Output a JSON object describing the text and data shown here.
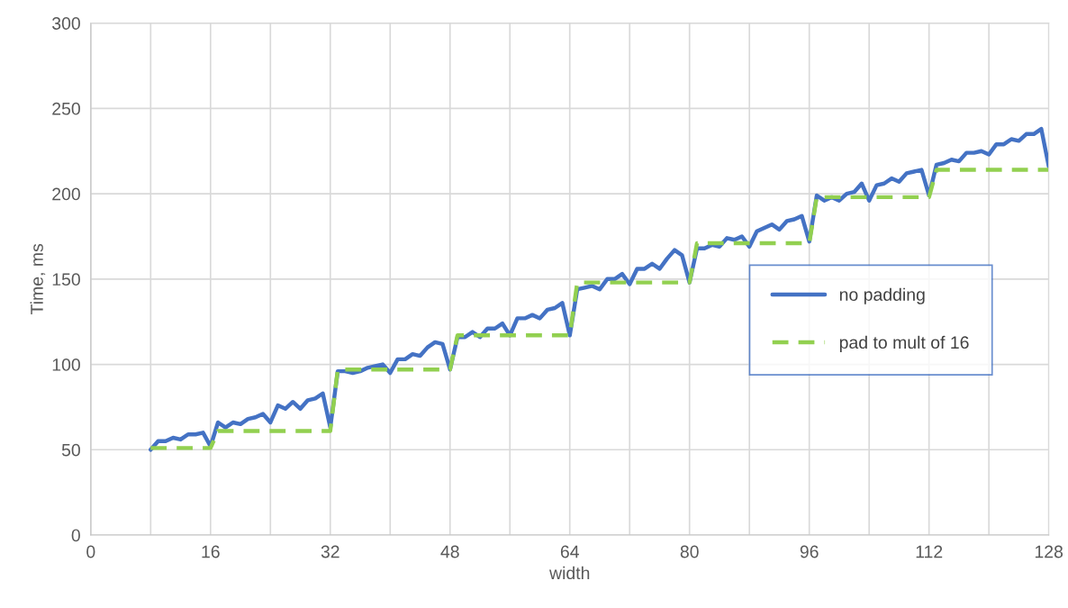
{
  "chart_data": {
    "type": "line",
    "xlabel": "width",
    "ylabel": "Time, ms",
    "x": [
      8,
      9,
      10,
      11,
      12,
      13,
      14,
      15,
      16,
      17,
      18,
      19,
      20,
      21,
      22,
      23,
      24,
      25,
      26,
      27,
      28,
      29,
      30,
      31,
      32,
      33,
      34,
      35,
      36,
      37,
      38,
      39,
      40,
      41,
      42,
      43,
      44,
      45,
      46,
      47,
      48,
      49,
      50,
      51,
      52,
      53,
      54,
      55,
      56,
      57,
      58,
      59,
      60,
      61,
      62,
      63,
      64,
      65,
      66,
      67,
      68,
      69,
      70,
      71,
      72,
      73,
      74,
      75,
      76,
      77,
      78,
      79,
      80,
      81,
      82,
      83,
      84,
      85,
      86,
      87,
      88,
      89,
      90,
      91,
      92,
      93,
      94,
      95,
      96,
      97,
      98,
      99,
      100,
      101,
      102,
      103,
      104,
      105,
      106,
      107,
      108,
      109,
      110,
      111,
      112,
      113,
      114,
      115,
      116,
      117,
      118,
      119,
      120,
      121,
      122,
      123,
      124,
      125,
      126,
      127,
      128
    ],
    "series": [
      {
        "name": "no padding",
        "color": "#4472c4",
        "line_style": "solid",
        "values": [
          50,
          55,
          55,
          57,
          56,
          59,
          59,
          60,
          52,
          66,
          63,
          66,
          65,
          68,
          69,
          71,
          66,
          76,
          74,
          78,
          74,
          79,
          80,
          83,
          63,
          96,
          96,
          95,
          96,
          98,
          99,
          100,
          95,
          103,
          103,
          106,
          105,
          110,
          113,
          112,
          97,
          116,
          116,
          119,
          116,
          121,
          121,
          124,
          117,
          127,
          127,
          129,
          127,
          132,
          133,
          136,
          117,
          144,
          145,
          146,
          144,
          150,
          150,
          153,
          147,
          156,
          156,
          159,
          156,
          162,
          167,
          164,
          148,
          168,
          168,
          170,
          169,
          174,
          173,
          175,
          169,
          178,
          180,
          182,
          179,
          184,
          185,
          187,
          172,
          199,
          196,
          198,
          196,
          200,
          201,
          206,
          196,
          205,
          206,
          209,
          207,
          212,
          213,
          214,
          199,
          217,
          218,
          220,
          219,
          224,
          224,
          225,
          223,
          229,
          229,
          232,
          231,
          235,
          235,
          238,
          216
        ]
      },
      {
        "name": "pad to mult of 16",
        "color": "#92d050",
        "line_style": "dashed",
        "values": [
          51,
          51,
          51,
          51,
          51,
          51,
          51,
          51,
          51,
          61,
          61,
          61,
          61,
          61,
          61,
          61,
          61,
          61,
          61,
          61,
          61,
          61,
          61,
          61,
          61,
          97,
          97,
          97,
          97,
          97,
          97,
          97,
          97,
          97,
          97,
          97,
          97,
          97,
          97,
          97,
          97,
          117,
          117,
          117,
          117,
          117,
          117,
          117,
          117,
          117,
          117,
          117,
          117,
          117,
          117,
          117,
          117,
          148,
          148,
          148,
          148,
          148,
          148,
          148,
          148,
          148,
          148,
          148,
          148,
          148,
          148,
          148,
          148,
          171,
          171,
          171,
          171,
          171,
          171,
          171,
          171,
          171,
          171,
          171,
          171,
          171,
          171,
          171,
          171,
          198,
          198,
          198,
          198,
          198,
          198,
          198,
          198,
          198,
          198,
          198,
          198,
          198,
          198,
          198,
          198,
          214,
          214,
          214,
          214,
          214,
          214,
          214,
          214,
          214,
          214,
          214,
          214,
          214,
          214,
          214,
          214
        ]
      }
    ],
    "xlim": [
      0,
      128
    ],
    "ylim": [
      0,
      300
    ],
    "xticks": [
      0,
      {
        "value": 8,
        "label": null
      },
      16,
      {
        "value": 24,
        "label": null
      },
      32,
      {
        "value": 40,
        "label": null
      },
      48,
      {
        "value": 56,
        "label": null
      },
      64,
      {
        "value": 72,
        "label": null
      },
      80,
      {
        "value": 88,
        "label": null
      },
      96,
      {
        "value": 104,
        "label": null
      },
      112,
      {
        "value": 120,
        "label": null
      },
      128
    ],
    "yticks": [
      0,
      50,
      100,
      150,
      200,
      250,
      300
    ],
    "grid": true,
    "legend": "center right",
    "marker": "none"
  }
}
